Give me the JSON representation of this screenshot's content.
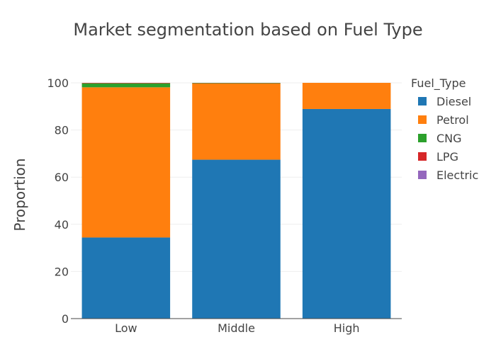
{
  "chart_data": {
    "type": "bar",
    "stacked": true,
    "title": "Market segmentation based on Fuel Type",
    "ylabel": "Proportion",
    "xlabel": "",
    "categories": [
      "Low",
      "Middle",
      "High"
    ],
    "ylim": [
      0,
      100
    ],
    "yticks": [
      0,
      20,
      40,
      60,
      80,
      100
    ],
    "legend_title": "Fuel_Type",
    "legend_position": "right",
    "grid": true,
    "series": [
      {
        "name": "Diesel",
        "color": "#1f77b4",
        "values": [
          34.4,
          67.4,
          88.9
        ]
      },
      {
        "name": "Petrol",
        "color": "#ff7f0e",
        "values": [
          63.7,
          32.3,
          11.1
        ]
      },
      {
        "name": "CNG",
        "color": "#2ca02c",
        "values": [
          1.7,
          0.2,
          0.0
        ]
      },
      {
        "name": "LPG",
        "color": "#d62728",
        "values": [
          0.2,
          0.1,
          0.0
        ]
      },
      {
        "name": "Electric",
        "color": "#9467bd",
        "values": [
          0.0,
          0.0,
          0.0
        ]
      }
    ]
  }
}
